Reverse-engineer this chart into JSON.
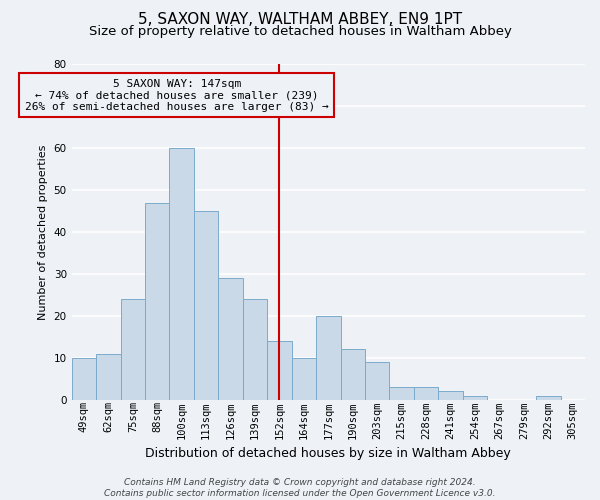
{
  "title": "5, SAXON WAY, WALTHAM ABBEY, EN9 1PT",
  "subtitle": "Size of property relative to detached houses in Waltham Abbey",
  "xlabel": "Distribution of detached houses by size in Waltham Abbey",
  "ylabel": "Number of detached properties",
  "bar_labels": [
    "49sqm",
    "62sqm",
    "75sqm",
    "88sqm",
    "100sqm",
    "113sqm",
    "126sqm",
    "139sqm",
    "152sqm",
    "164sqm",
    "177sqm",
    "190sqm",
    "203sqm",
    "215sqm",
    "228sqm",
    "241sqm",
    "254sqm",
    "267sqm",
    "279sqm",
    "292sqm",
    "305sqm"
  ],
  "bar_values": [
    10,
    11,
    24,
    47,
    60,
    45,
    29,
    24,
    14,
    10,
    20,
    12,
    9,
    3,
    3,
    2,
    1,
    0,
    0,
    1,
    0
  ],
  "bar_color": "#c9d9e8",
  "bar_edge_color": "#7aabcc",
  "ylim": [
    0,
    80
  ],
  "yticks": [
    0,
    10,
    20,
    30,
    40,
    50,
    60,
    70,
    80
  ],
  "vline_x_index": 8,
  "vline_color": "#cc0000",
  "annotation_title": "5 SAXON WAY: 147sqm",
  "annotation_line1": "← 74% of detached houses are smaller (239)",
  "annotation_line2": "26% of semi-detached houses are larger (83) →",
  "annotation_box_color": "#cc0000",
  "annotation_bg": "#eef2f7",
  "footer_line1": "Contains HM Land Registry data © Crown copyright and database right 2024.",
  "footer_line2": "Contains public sector information licensed under the Open Government Licence v3.0.",
  "background_color": "#eef2f7",
  "grid_color": "#ffffff",
  "title_fontsize": 11,
  "subtitle_fontsize": 9.5,
  "xlabel_fontsize": 9,
  "ylabel_fontsize": 8,
  "tick_fontsize": 7.5,
  "annotation_fontsize": 8,
  "footer_fontsize": 6.5
}
